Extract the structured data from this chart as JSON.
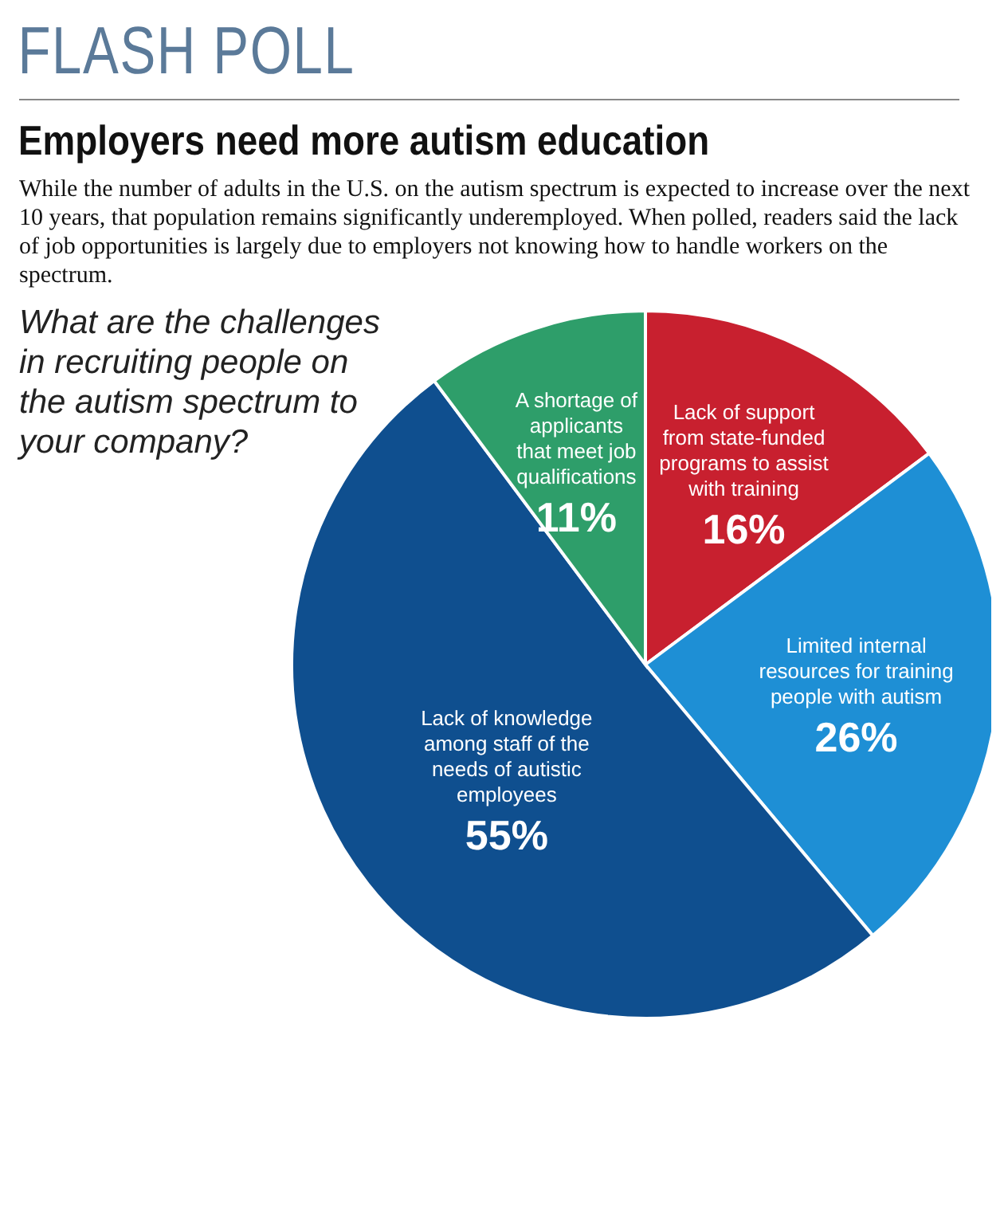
{
  "chart_data": {
    "type": "pie",
    "title": "FLASH POLL",
    "subtitle": "Employers need more autism education",
    "annotations": [
      "While the number of adults in the U.S. on the autism spectrum is expected to increase over the next 10 years, that population remains significantly underemployed. When polled, readers said the lack of job opportunities is largely due to employers not knowing how to handle workers on the spectrum.",
      "What are the challenges in recruiting people on the autism spectrum to your company?"
    ],
    "categories": [
      "Lack of support from state-funded programs to assist with training",
      "Limited internal resources for training people with autism",
      "Lack of knowledge among staff of the needs of autistic employees",
      "A shortage of applicants that meet job qualifications"
    ],
    "values": [
      16,
      26,
      55,
      11
    ],
    "value_labels": [
      "16%",
      "26%",
      "55%",
      "11%"
    ],
    "colors": [
      "#c8202f",
      "#1e8fd5",
      "#0f4f8f",
      "#2e9e6a"
    ]
  }
}
